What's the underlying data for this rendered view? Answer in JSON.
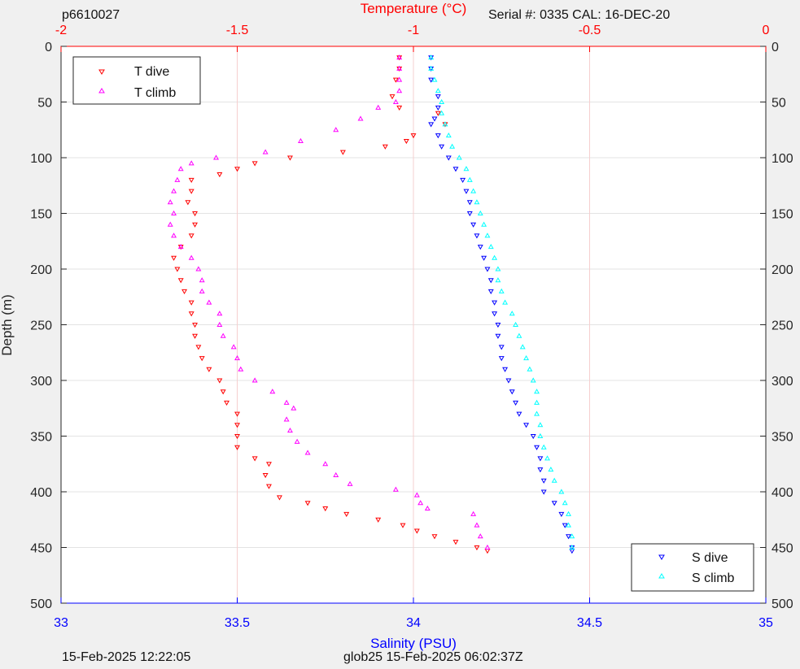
{
  "header": {
    "left": "p6610027",
    "serial": "Serial #: 0335  CAL: 16-DEC-20"
  },
  "footer": {
    "left": "15-Feb-2025 12:22:05",
    "center": "glob25 15-Feb-2025 06:02:37Z"
  },
  "chart_data": {
    "type": "scatter",
    "ylabel": "Depth (m)",
    "x_top_label": "Temperature (°C)",
    "x_bottom_label": "Salinity (PSU)",
    "y_range": [
      0,
      500
    ],
    "y_reversed": true,
    "y_ticks": [
      0,
      50,
      100,
      150,
      200,
      250,
      300,
      350,
      400,
      450,
      500
    ],
    "temp_range": [
      -2,
      0
    ],
    "temp_ticks": [
      -2,
      -1.5,
      -1,
      -0.5,
      0
    ],
    "sal_range": [
      33,
      35
    ],
    "sal_ticks": [
      33,
      33.5,
      34,
      34.5,
      35
    ],
    "grid": true,
    "legend_top_left": [
      "T dive",
      "T climb"
    ],
    "legend_bottom_right": [
      "S dive",
      "S climb"
    ],
    "colors": {
      "temperature_axis": "#ff0000",
      "salinity_axis": "#0000ff",
      "t_dive": "#ff0000",
      "t_climb": "#ff00ff",
      "s_dive": "#0000ff",
      "s_climb": "#00ffff"
    },
    "series": [
      {
        "name": "T dive",
        "axis": "temperature",
        "marker": "triangle-down",
        "points": [
          [
            -1.04,
            10
          ],
          [
            -1.04,
            20
          ],
          [
            -1.05,
            30
          ],
          [
            -1.06,
            45
          ],
          [
            -1.04,
            55
          ],
          [
            -0.93,
            60
          ],
          [
            -0.91,
            70
          ],
          [
            -1.0,
            80
          ],
          [
            -1.02,
            85
          ],
          [
            -1.08,
            90
          ],
          [
            -1.2,
            95
          ],
          [
            -1.35,
            100
          ],
          [
            -1.45,
            105
          ],
          [
            -1.5,
            110
          ],
          [
            -1.55,
            115
          ],
          [
            -1.63,
            120
          ],
          [
            -1.63,
            130
          ],
          [
            -1.64,
            140
          ],
          [
            -1.62,
            150
          ],
          [
            -1.62,
            160
          ],
          [
            -1.63,
            170
          ],
          [
            -1.66,
            180
          ],
          [
            -1.68,
            190
          ],
          [
            -1.67,
            200
          ],
          [
            -1.66,
            210
          ],
          [
            -1.65,
            220
          ],
          [
            -1.63,
            230
          ],
          [
            -1.63,
            240
          ],
          [
            -1.62,
            250
          ],
          [
            -1.62,
            260
          ],
          [
            -1.61,
            270
          ],
          [
            -1.6,
            280
          ],
          [
            -1.58,
            290
          ],
          [
            -1.55,
            300
          ],
          [
            -1.54,
            310
          ],
          [
            -1.53,
            320
          ],
          [
            -1.5,
            330
          ],
          [
            -1.5,
            340
          ],
          [
            -1.5,
            350
          ],
          [
            -1.5,
            360
          ],
          [
            -1.45,
            370
          ],
          [
            -1.41,
            375
          ],
          [
            -1.42,
            385
          ],
          [
            -1.41,
            395
          ],
          [
            -1.38,
            405
          ],
          [
            -1.3,
            410
          ],
          [
            -1.25,
            415
          ],
          [
            -1.19,
            420
          ],
          [
            -1.1,
            425
          ],
          [
            -1.03,
            430
          ],
          [
            -0.99,
            435
          ],
          [
            -0.94,
            440
          ],
          [
            -0.88,
            445
          ],
          [
            -0.82,
            450
          ],
          [
            -0.79,
            453
          ]
        ]
      },
      {
        "name": "T climb",
        "axis": "temperature",
        "marker": "triangle-up",
        "points": [
          [
            -1.04,
            10
          ],
          [
            -1.04,
            20
          ],
          [
            -1.04,
            30
          ],
          [
            -1.04,
            40
          ],
          [
            -1.05,
            50
          ],
          [
            -1.1,
            55
          ],
          [
            -1.15,
            65
          ],
          [
            -1.22,
            75
          ],
          [
            -1.32,
            85
          ],
          [
            -1.42,
            95
          ],
          [
            -1.56,
            100
          ],
          [
            -1.63,
            105
          ],
          [
            -1.66,
            110
          ],
          [
            -1.67,
            120
          ],
          [
            -1.68,
            130
          ],
          [
            -1.69,
            140
          ],
          [
            -1.68,
            150
          ],
          [
            -1.69,
            160
          ],
          [
            -1.68,
            170
          ],
          [
            -1.66,
            180
          ],
          [
            -1.63,
            190
          ],
          [
            -1.61,
            200
          ],
          [
            -1.6,
            210
          ],
          [
            -1.6,
            220
          ],
          [
            -1.58,
            230
          ],
          [
            -1.55,
            240
          ],
          [
            -1.55,
            250
          ],
          [
            -1.54,
            260
          ],
          [
            -1.51,
            270
          ],
          [
            -1.5,
            280
          ],
          [
            -1.49,
            290
          ],
          [
            -1.45,
            300
          ],
          [
            -1.4,
            310
          ],
          [
            -1.36,
            320
          ],
          [
            -1.34,
            325
          ],
          [
            -1.36,
            335
          ],
          [
            -1.35,
            345
          ],
          [
            -1.33,
            355
          ],
          [
            -1.3,
            365
          ],
          [
            -1.25,
            375
          ],
          [
            -1.22,
            385
          ],
          [
            -1.18,
            393
          ],
          [
            -1.05,
            398
          ],
          [
            -0.99,
            403
          ],
          [
            -0.98,
            410
          ],
          [
            -0.96,
            415
          ],
          [
            -0.83,
            420
          ],
          [
            -0.82,
            430
          ],
          [
            -0.81,
            440
          ],
          [
            -0.79,
            450
          ]
        ]
      },
      {
        "name": "S dive",
        "axis": "salinity",
        "marker": "triangle-down",
        "points": [
          [
            34.05,
            10
          ],
          [
            34.05,
            20
          ],
          [
            34.05,
            30
          ],
          [
            34.07,
            45
          ],
          [
            34.07,
            55
          ],
          [
            34.06,
            65
          ],
          [
            34.05,
            70
          ],
          [
            34.07,
            80
          ],
          [
            34.08,
            90
          ],
          [
            34.1,
            100
          ],
          [
            34.12,
            110
          ],
          [
            34.14,
            120
          ],
          [
            34.15,
            130
          ],
          [
            34.16,
            140
          ],
          [
            34.16,
            150
          ],
          [
            34.17,
            160
          ],
          [
            34.18,
            170
          ],
          [
            34.19,
            180
          ],
          [
            34.2,
            190
          ],
          [
            34.21,
            200
          ],
          [
            34.22,
            210
          ],
          [
            34.22,
            220
          ],
          [
            34.23,
            230
          ],
          [
            34.23,
            240
          ],
          [
            34.24,
            250
          ],
          [
            34.24,
            260
          ],
          [
            34.25,
            270
          ],
          [
            34.25,
            280
          ],
          [
            34.26,
            290
          ],
          [
            34.27,
            300
          ],
          [
            34.28,
            310
          ],
          [
            34.29,
            320
          ],
          [
            34.3,
            330
          ],
          [
            34.32,
            340
          ],
          [
            34.34,
            350
          ],
          [
            34.35,
            360
          ],
          [
            34.36,
            370
          ],
          [
            34.36,
            380
          ],
          [
            34.37,
            390
          ],
          [
            34.37,
            400
          ],
          [
            34.4,
            410
          ],
          [
            34.42,
            420
          ],
          [
            34.43,
            430
          ],
          [
            34.44,
            440
          ],
          [
            34.45,
            450
          ],
          [
            34.45,
            453
          ]
        ]
      },
      {
        "name": "S climb",
        "axis": "salinity",
        "marker": "triangle-up",
        "points": [
          [
            34.05,
            10
          ],
          [
            34.05,
            20
          ],
          [
            34.06,
            30
          ],
          [
            34.07,
            40
          ],
          [
            34.08,
            50
          ],
          [
            34.08,
            60
          ],
          [
            34.09,
            70
          ],
          [
            34.1,
            80
          ],
          [
            34.11,
            90
          ],
          [
            34.13,
            100
          ],
          [
            34.15,
            110
          ],
          [
            34.16,
            120
          ],
          [
            34.17,
            130
          ],
          [
            34.18,
            140
          ],
          [
            34.19,
            150
          ],
          [
            34.2,
            160
          ],
          [
            34.21,
            170
          ],
          [
            34.22,
            180
          ],
          [
            34.23,
            190
          ],
          [
            34.24,
            200
          ],
          [
            34.24,
            210
          ],
          [
            34.25,
            220
          ],
          [
            34.26,
            230
          ],
          [
            34.28,
            240
          ],
          [
            34.29,
            250
          ],
          [
            34.3,
            260
          ],
          [
            34.31,
            270
          ],
          [
            34.32,
            280
          ],
          [
            34.33,
            290
          ],
          [
            34.34,
            300
          ],
          [
            34.35,
            310
          ],
          [
            34.35,
            320
          ],
          [
            34.35,
            330
          ],
          [
            34.36,
            340
          ],
          [
            34.36,
            350
          ],
          [
            34.37,
            360
          ],
          [
            34.38,
            370
          ],
          [
            34.39,
            380
          ],
          [
            34.4,
            390
          ],
          [
            34.42,
            400
          ],
          [
            34.43,
            410
          ],
          [
            34.44,
            420
          ],
          [
            34.44,
            430
          ],
          [
            34.45,
            440
          ],
          [
            34.45,
            450
          ]
        ]
      }
    ]
  }
}
